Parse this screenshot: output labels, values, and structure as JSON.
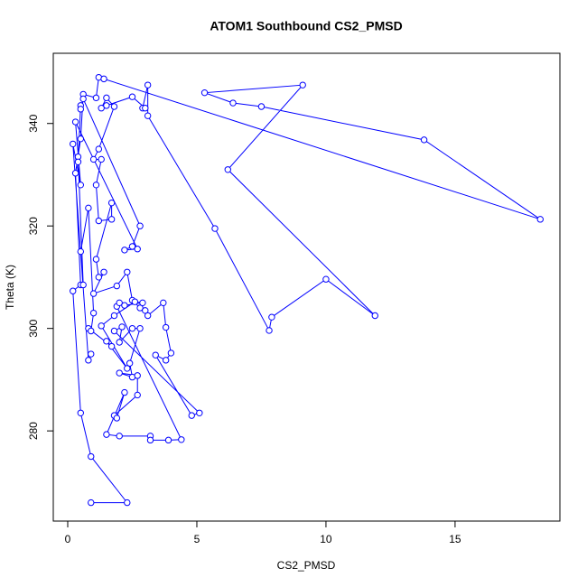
{
  "chart_data": {
    "type": "line",
    "title": "ATOM1 Southbound CS2_PMSD",
    "x_label": "CS2_PMSD",
    "y_label": "Theta (K)",
    "x": [
      0.9,
      2.3,
      0.9,
      0.5,
      0.2,
      0.5,
      0.3,
      0.5,
      0.6,
      1.1,
      1.2,
      1.4,
      18.3,
      13.8,
      7.5,
      6.4,
      5.3,
      9.1,
      6.2,
      11.9,
      10.0,
      7.9,
      7.8,
      5.7,
      3.1,
      3.1,
      2.9,
      3.0,
      2.5,
      1.5,
      1.3,
      1.5,
      1.8,
      1.2,
      1.0,
      1.3,
      1.1,
      1.2,
      1.7,
      1.7,
      1.1,
      1.2,
      1.4,
      1.0,
      1.9,
      2.3,
      2.5,
      2.8,
      3.0,
      3.1,
      3.7,
      3.8,
      4.0,
      3.8,
      3.4,
      4.8,
      5.1,
      1.8,
      2.1,
      2.0,
      2.5,
      2.8,
      2.4,
      2.5,
      2.0,
      2.7,
      2.7,
      1.8,
      1.9,
      2.2,
      1.5,
      2.0,
      3.2,
      3.2,
      3.9,
      4.4,
      1.9,
      2.0,
      2.2,
      2.9,
      2.6,
      1.8,
      1.3,
      2.3,
      1.5,
      1.7,
      0.8,
      0.9,
      1.0,
      0.8,
      0.5,
      0.6,
      0.4,
      0.4,
      0.5,
      0.5,
      0.6,
      2.8,
      2.5,
      2.2,
      2.7,
      0.3,
      0.5,
      0.2,
      0.8,
      0.9
    ],
    "series": [
      {
        "name": "Theta",
        "color": "#0000ff",
        "values": [
          266,
          266,
          275,
          283.5,
          307.3,
          308.5,
          330.3,
          337,
          345.7,
          345,
          349,
          348.7,
          321.3,
          336.8,
          343.3,
          344,
          346,
          347.5,
          331,
          302.5,
          309.6,
          302.2,
          299.6,
          319.5,
          341.5,
          347.5,
          343,
          343,
          345.2,
          343.5,
          343,
          345,
          343.3,
          335,
          333,
          333,
          328,
          321,
          321.3,
          324.5,
          313.5,
          310,
          311,
          306.8,
          308.3,
          311,
          305.5,
          304,
          303.5,
          302.5,
          305,
          300.2,
          295.2,
          293.8,
          294.8,
          283,
          283.5,
          299.5,
          300.3,
          297.3,
          300,
          300,
          293.2,
          290.5,
          291.3,
          290.8,
          287,
          283,
          282.5,
          287.5,
          279.3,
          279,
          279,
          278.2,
          278.2,
          278.3,
          304.3,
          305,
          304.5,
          305,
          305.2,
          302.5,
          300.5,
          292.2,
          297.5,
          296.5,
          300,
          299.5,
          303,
          323.5,
          315,
          308.5,
          333.5,
          332.5,
          343.5,
          342.8,
          344.8,
          320,
          316,
          315.3,
          315.5,
          340.3,
          328,
          336,
          293.8,
          295
        ]
      }
    ],
    "xlim": [
      -0.56,
      19.06
    ],
    "ylim": [
      262.4,
      353.7
    ],
    "xticks": [
      0,
      5,
      10,
      15
    ],
    "yticks": [
      280,
      300,
      320,
      340
    ]
  }
}
